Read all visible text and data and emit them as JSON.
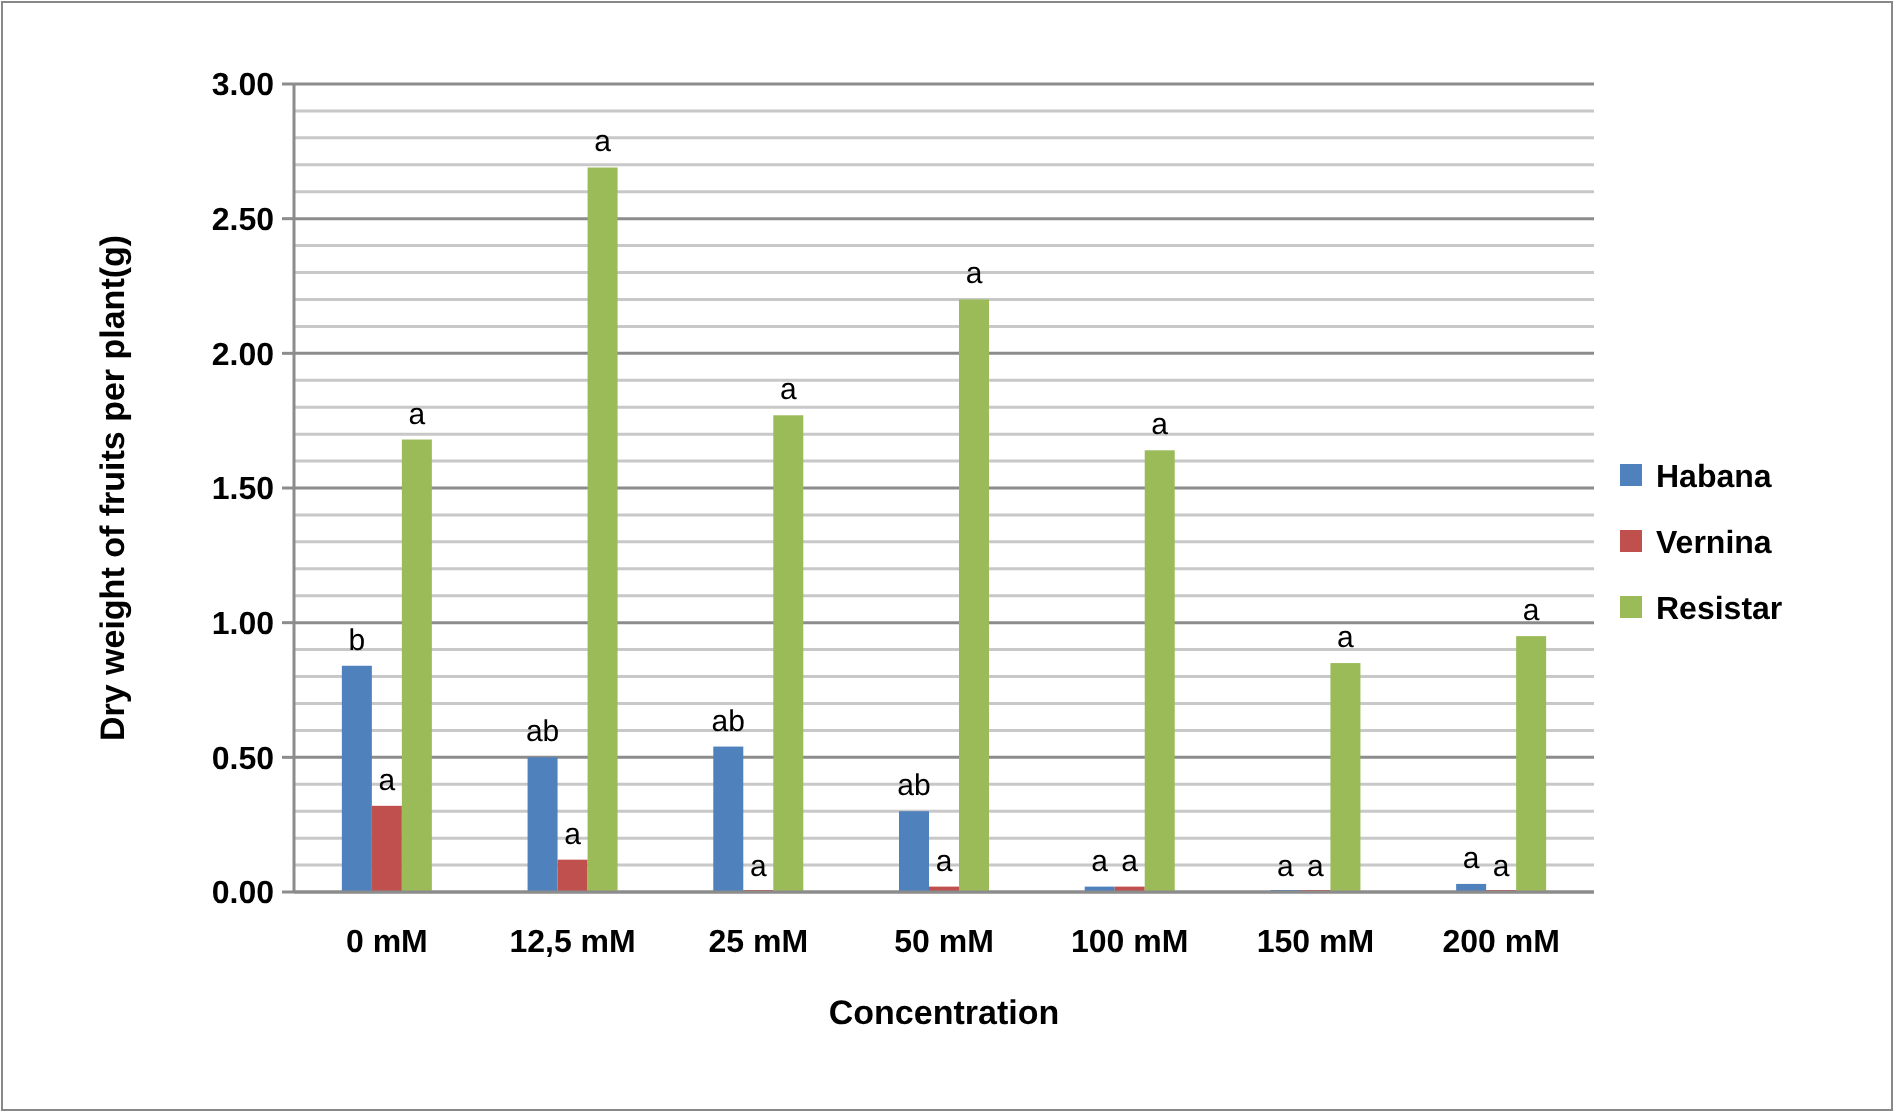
{
  "chart_data": {
    "type": "bar",
    "xlabel": "Concentration",
    "ylabel": "Dry weight of fruits per plant(g)",
    "categories": [
      "0 mM",
      "12,5 mM",
      "25 mM",
      "50 mM",
      "100 mM",
      "150 mM",
      "200 mM"
    ],
    "series": [
      {
        "name": "Habana",
        "color": "#4f81bd",
        "values": [
          0.84,
          0.5,
          0.54,
          0.3,
          0.02,
          0,
          0.03
        ],
        "value_labels": [
          "b",
          "ab",
          "ab",
          "ab",
          "a",
          "a",
          "a"
        ]
      },
      {
        "name": "Vernina",
        "color": "#c0504d",
        "values": [
          0.32,
          0.12,
          0,
          0.02,
          0.02,
          0,
          0
        ],
        "value_labels": [
          "a",
          "a",
          "a",
          "a",
          "a",
          "a",
          "a"
        ]
      },
      {
        "name": "Resistar",
        "color": "#9bbb59",
        "values": [
          1.68,
          2.69,
          1.77,
          2.2,
          1.64,
          0.85,
          0.95
        ],
        "value_labels": [
          "a",
          "a",
          "a",
          "a",
          "a",
          "a",
          "a"
        ]
      }
    ],
    "ylim": [
      0,
      3
    ],
    "yticks": [
      {
        "value": 0,
        "label": "0.00"
      },
      {
        "value": 0.1,
        "label": null
      },
      {
        "value": 0.2,
        "label": null
      },
      {
        "value": 0.3,
        "label": null
      },
      {
        "value": 0.4,
        "label": null
      },
      {
        "value": 0.5,
        "label": "0.50"
      },
      {
        "value": 0.6,
        "label": null
      },
      {
        "value": 0.7,
        "label": null
      },
      {
        "value": 0.8,
        "label": null
      },
      {
        "value": 0.9,
        "label": null
      },
      {
        "value": 1,
        "label": "1.00"
      },
      {
        "value": 1.1,
        "label": null
      },
      {
        "value": 1.2,
        "label": null
      },
      {
        "value": 1.3,
        "label": null
      },
      {
        "value": 1.4,
        "label": null
      },
      {
        "value": 1.5,
        "label": "1.50"
      },
      {
        "value": 1.6,
        "label": null
      },
      {
        "value": 1.7,
        "label": null
      },
      {
        "value": 1.8,
        "label": null
      },
      {
        "value": 1.9,
        "label": null
      },
      {
        "value": 2,
        "label": "2.00"
      },
      {
        "value": 2.1,
        "label": null
      },
      {
        "value": 2.2,
        "label": null
      },
      {
        "value": 2.3,
        "label": null
      },
      {
        "value": 2.4,
        "label": null
      },
      {
        "value": 2.5,
        "label": "2.50"
      },
      {
        "value": 2.6,
        "label": null
      },
      {
        "value": 2.7,
        "label": null
      },
      {
        "value": 2.8,
        "label": null
      },
      {
        "value": 2.9,
        "label": null
      },
      {
        "value": 3,
        "label": "3.00"
      }
    ],
    "grid": "y",
    "legend": "right"
  }
}
